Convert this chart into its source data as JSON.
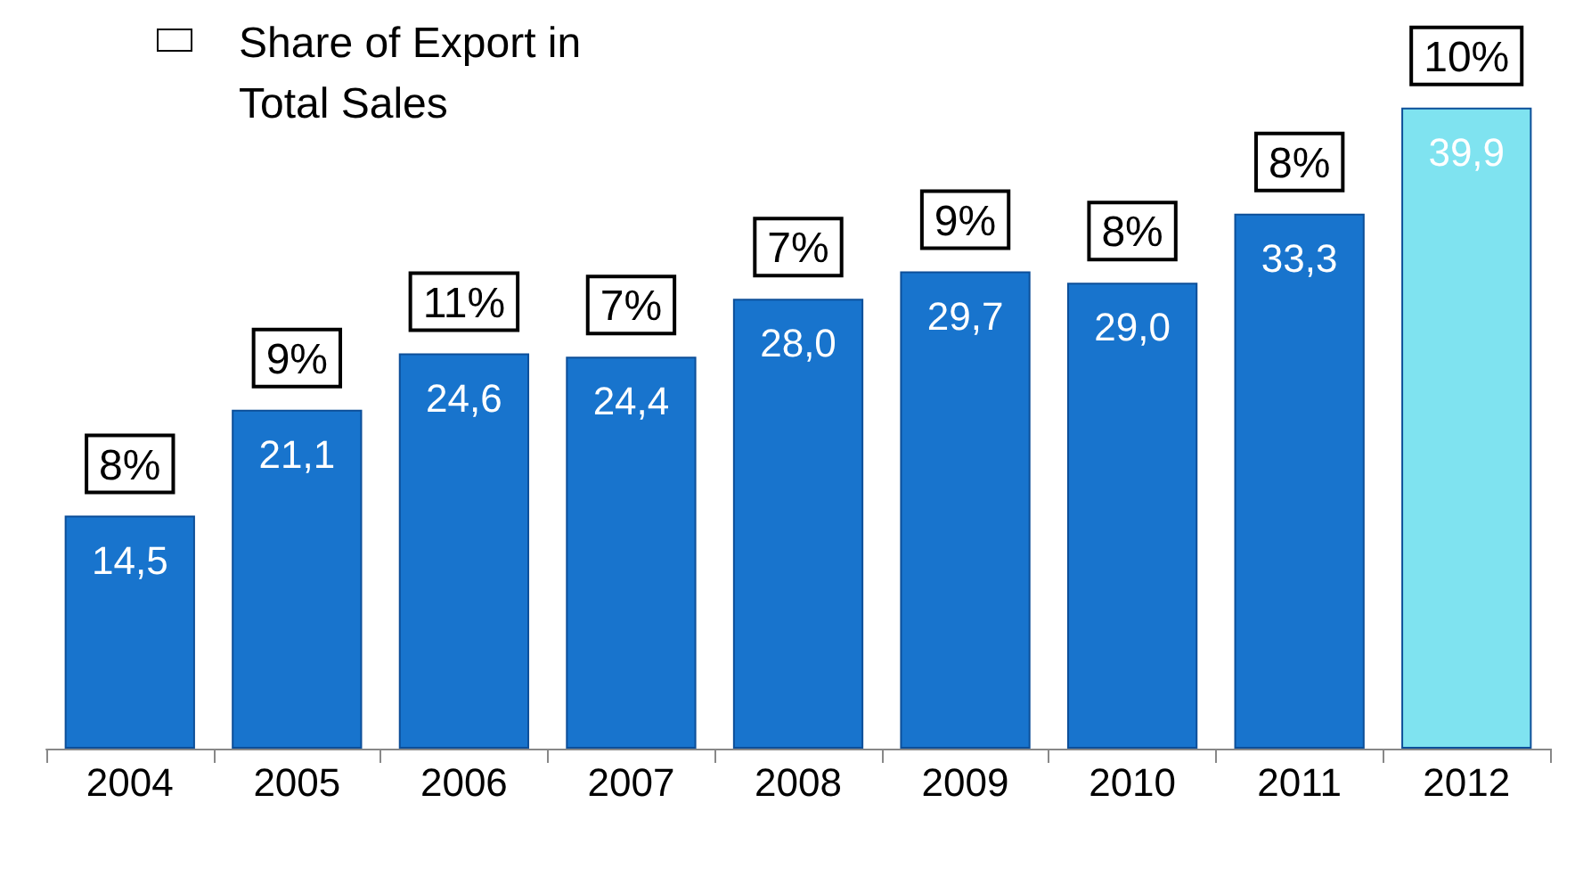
{
  "chart_data": {
    "type": "bar",
    "categories": [
      "2004",
      "2005",
      "2006",
      "2007",
      "2008",
      "2009",
      "2010",
      "2011",
      "2012"
    ],
    "values": [
      14.5,
      21.1,
      24.6,
      24.4,
      28.0,
      29.7,
      29.0,
      33.3,
      39.9
    ],
    "value_labels": [
      "14,5",
      "21,1",
      "24,6",
      "24,4",
      "28,0",
      "29,7",
      "29,0",
      "33,3",
      "39,9"
    ],
    "colors": [
      "#1874cd",
      "#1874cd",
      "#1874cd",
      "#1874cd",
      "#1874cd",
      "#1874cd",
      "#1874cd",
      "#1874cd",
      "#7fe3f0"
    ],
    "legend_title": "Share of Export in Total Sales",
    "annotations": [
      {
        "text": "8%",
        "x": "2004",
        "y": 14.5
      },
      {
        "text": "9%",
        "x": "2005",
        "y": 21.1
      },
      {
        "text": "11%",
        "x": "2006",
        "y": 24.6
      },
      {
        "text": "7%",
        "x": "2007",
        "y": 24.4
      },
      {
        "text": "7%",
        "x": "2008",
        "y": 28.0
      },
      {
        "text": "9%",
        "x": "2009",
        "y": 29.7
      },
      {
        "text": "8%",
        "x": "2010",
        "y": 29.0
      },
      {
        "text": "8%",
        "x": "2011",
        "y": 33.3
      },
      {
        "text": "10%",
        "x": "2012",
        "y": 39.9
      }
    ]
  }
}
